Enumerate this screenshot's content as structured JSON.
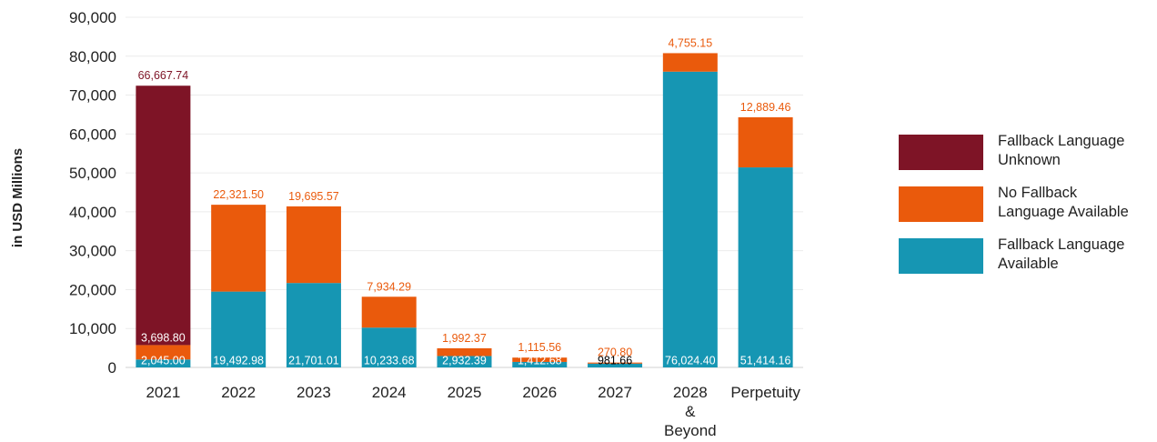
{
  "chart_data": {
    "type": "bar",
    "stacked": true,
    "title": "",
    "xlabel": "",
    "ylabel": "in USD Millions",
    "ylim": [
      0,
      90000
    ],
    "yticks": [
      0,
      10000,
      20000,
      30000,
      40000,
      50000,
      60000,
      70000,
      80000,
      90000
    ],
    "ytick_labels": [
      "0",
      "10,000",
      "20,000",
      "30,000",
      "40,000",
      "50,000",
      "60,000",
      "70,000",
      "80,000",
      "90,000"
    ],
    "grid": true,
    "legend_position": "right",
    "categories": [
      [
        "2021"
      ],
      [
        "2022"
      ],
      [
        "2023"
      ],
      [
        "2024"
      ],
      [
        "2025"
      ],
      [
        "2026"
      ],
      [
        "2027"
      ],
      [
        "2028",
        "&",
        "Beyond"
      ],
      [
        "Perpetuity"
      ]
    ],
    "series": [
      {
        "name": "Fallback Language Available",
        "color": "#1696b3",
        "values": [
          2045.0,
          19492.98,
          21701.01,
          10233.68,
          2932.39,
          1412.68,
          981.66,
          76024.4,
          51414.16
        ],
        "labels": [
          "2,045.00",
          "19,492.98",
          "21,701.01",
          "10,233.68",
          "2,932.39",
          "1,412.68",
          "981.66",
          "76,024.40",
          "51,414.16"
        ],
        "label_colors": [
          "#ffffff",
          "#ffffff",
          "#ffffff",
          "#ffffff",
          "#ffffff",
          "#ffffff",
          "#000000",
          "#ffffff",
          "#ffffff"
        ]
      },
      {
        "name": "No Fallback Language Available",
        "color": "#ea5a0c",
        "values": [
          3698.8,
          22321.5,
          19695.57,
          7934.29,
          1992.37,
          1115.56,
          270.8,
          4755.15,
          12889.46
        ],
        "labels": [
          "3,698.80",
          "22,321.50",
          "19,695.57",
          "7,934.29",
          "1,992.37",
          "1,115.56",
          "270.80",
          "4,755.15",
          "12,889.46"
        ]
      },
      {
        "name": "Fallback Language Unknown",
        "color": "#7e1426",
        "values": [
          66667.74,
          0,
          0,
          0,
          0,
          0,
          0,
          0,
          0
        ],
        "labels": [
          "66,667.74",
          "",
          "",
          "",
          "",
          "",
          "",
          "",
          ""
        ]
      }
    ]
  },
  "legend": [
    {
      "lines": [
        "Fallback Language",
        "Unknown"
      ],
      "color": "#7e1426"
    },
    {
      "lines": [
        "No Fallback",
        "Language Available"
      ],
      "color": "#ea5a0c"
    },
    {
      "lines": [
        "Fallback Language",
        "Available"
      ],
      "color": "#1696b3"
    }
  ]
}
